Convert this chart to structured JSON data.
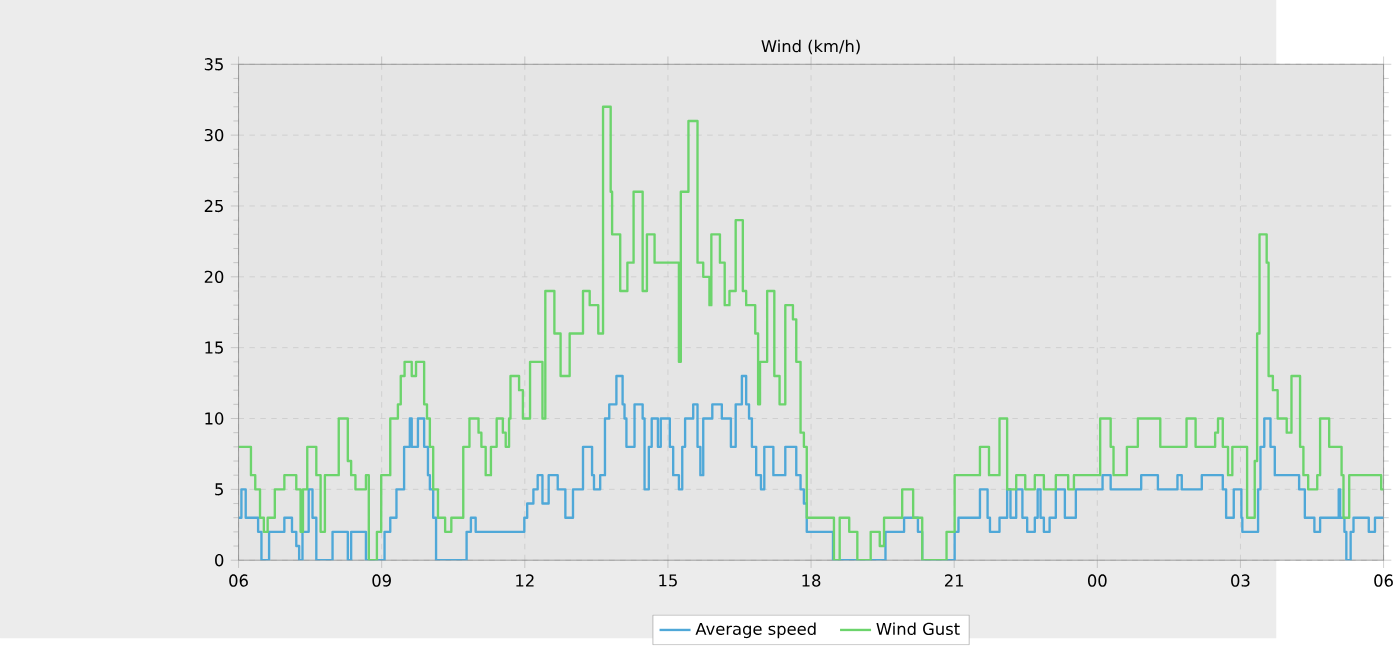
{
  "chart_data": {
    "type": "step",
    "title": "Wind (km/h)",
    "xlim": [
      6,
      30
    ],
    "xticks": [
      {
        "value": 6,
        "label": "06"
      },
      {
        "value": 9,
        "label": "09"
      },
      {
        "value": 12,
        "label": "12"
      },
      {
        "value": 15,
        "label": "15"
      },
      {
        "value": 18,
        "label": "18"
      },
      {
        "value": 21,
        "label": "21"
      },
      {
        "value": 24,
        "label": "00"
      },
      {
        "value": 27,
        "label": "03"
      },
      {
        "value": 30,
        "label": "06"
      }
    ],
    "ylim": [
      0,
      35
    ],
    "yticks": [
      0,
      5,
      10,
      15,
      20,
      25,
      30,
      35
    ],
    "grid": true,
    "legend": "bottom",
    "line_style": "solid",
    "series": [
      {
        "name": "Average speed",
        "color": "#4fa8d8",
        "x": [
          6.0,
          6.06,
          6.15,
          6.41,
          6.48,
          6.64,
          6.96,
          7.12,
          7.21,
          7.27,
          7.34,
          7.47,
          7.55,
          7.63,
          7.97,
          8.29,
          8.36,
          8.67,
          9.06,
          9.18,
          9.31,
          9.47,
          9.59,
          9.63,
          9.76,
          9.89,
          9.97,
          10.01,
          10.08,
          10.14,
          10.78,
          10.87,
          10.97,
          11.99,
          12.05,
          12.18,
          12.27,
          12.37,
          12.5,
          12.69,
          12.85,
          13.01,
          13.22,
          13.41,
          13.45,
          13.58,
          13.68,
          13.77,
          13.92,
          14.05,
          14.09,
          14.13,
          14.3,
          14.47,
          14.51,
          14.6,
          14.66,
          14.79,
          14.85,
          15.04,
          15.11,
          15.23,
          15.3,
          15.36,
          15.53,
          15.62,
          15.68,
          15.74,
          15.93,
          16.13,
          16.32,
          16.42,
          16.55,
          16.64,
          16.7,
          16.76,
          16.85,
          16.95,
          17.02,
          17.21,
          17.46,
          17.69,
          17.78,
          17.85,
          17.91,
          18.46,
          19.56,
          19.95,
          20.24,
          20.33,
          21.01,
          21.09,
          21.54,
          21.7,
          21.75,
          21.95,
          22.11,
          22.18,
          22.3,
          22.43,
          22.53,
          22.69,
          22.75,
          22.81,
          22.88,
          23.0,
          23.13,
          23.32,
          23.55,
          24.11,
          24.28,
          24.92,
          25.27,
          25.68,
          25.77,
          26.19,
          26.63,
          26.7,
          26.86,
          27.02,
          27.04,
          27.37,
          27.42,
          27.5,
          27.63,
          27.72,
          28.23,
          28.35,
          28.55,
          28.67,
          29.06,
          29.09,
          29.18,
          29.22,
          29.31,
          29.37,
          29.69,
          29.82,
          30
        ],
        "values": [
          3,
          5,
          3,
          2,
          0,
          2,
          3,
          2,
          1,
          0,
          2,
          5,
          3,
          0,
          2,
          0,
          2,
          0,
          2,
          3,
          5,
          8,
          10,
          8,
          10,
          8,
          6,
          5,
          3,
          0,
          2,
          3,
          2,
          3,
          4,
          5,
          6,
          4,
          6,
          5,
          3,
          5,
          8,
          6,
          5,
          6,
          10,
          11,
          13,
          11,
          10,
          8,
          11,
          10,
          5,
          8,
          10,
          8,
          10,
          8,
          6,
          5,
          8,
          10,
          11,
          8,
          6,
          10,
          11,
          10,
          8,
          11,
          13,
          11,
          10,
          8,
          6,
          5,
          8,
          6,
          8,
          6,
          5,
          4,
          2,
          0,
          2,
          3,
          2,
          0,
          2,
          3,
          5,
          3,
          2,
          3,
          5,
          3,
          5,
          3,
          2,
          3,
          5,
          3,
          2,
          3,
          5,
          3,
          5,
          6,
          5,
          6,
          5,
          6,
          5,
          6,
          5,
          3,
          5,
          3,
          2,
          5,
          8,
          10,
          8,
          6,
          5,
          3,
          2,
          3,
          5,
          3,
          2,
          0,
          2,
          3,
          2,
          3,
          3
        ]
      },
      {
        "name": "Wind Gust",
        "color": "#6cd46c",
        "x": [
          6.0,
          6.26,
          6.35,
          6.45,
          6.53,
          6.61,
          6.76,
          6.96,
          7.21,
          7.3,
          7.35,
          7.44,
          7.63,
          7.72,
          7.81,
          8.1,
          8.29,
          8.36,
          8.45,
          8.67,
          8.73,
          8.9,
          8.99,
          9.18,
          9.34,
          9.4,
          9.48,
          9.63,
          9.72,
          9.89,
          9.95,
          10.01,
          10.08,
          10.18,
          10.33,
          10.46,
          10.71,
          10.84,
          11.03,
          11.09,
          11.18,
          11.29,
          11.41,
          11.54,
          11.6,
          11.67,
          11.7,
          11.88,
          11.96,
          12.11,
          12.37,
          12.43,
          12.62,
          12.75,
          12.94,
          13.22,
          13.36,
          13.54,
          13.64,
          13.8,
          13.83,
          14.0,
          14.15,
          14.28,
          14.47,
          14.56,
          14.72,
          15.23,
          15.27,
          15.43,
          15.62,
          15.74,
          15.87,
          15.91,
          16.09,
          16.19,
          16.29,
          16.42,
          16.57,
          16.64,
          16.83,
          16.89,
          16.93,
          17.08,
          17.23,
          17.34,
          17.46,
          17.62,
          17.69,
          17.78,
          17.85,
          17.91,
          18.48,
          18.6,
          18.8,
          18.97,
          19.25,
          19.44,
          19.53,
          19.91,
          20.14,
          20.33,
          20.84,
          21.01,
          21.54,
          21.73,
          21.95,
          22.11,
          22.3,
          22.49,
          22.69,
          22.88,
          23.13,
          23.39,
          23.51,
          24.06,
          24.28,
          24.34,
          24.62,
          24.85,
          25.32,
          25.87,
          26.06,
          26.47,
          26.53,
          26.63,
          26.74,
          26.83,
          27.14,
          27.3,
          27.35,
          27.4,
          27.55,
          27.59,
          27.68,
          27.78,
          27.97,
          28.07,
          28.25,
          28.32,
          28.42,
          28.61,
          28.67,
          28.86,
          29.12,
          29.16,
          29.28,
          29.95,
          30
        ],
        "values": [
          8,
          6,
          5,
          3,
          2,
          3,
          5,
          6,
          5,
          2,
          5,
          8,
          6,
          2,
          6,
          10,
          7,
          6,
          5,
          6,
          0,
          2,
          6,
          10,
          11,
          13,
          14,
          13,
          14,
          11,
          10,
          8,
          5,
          3,
          2,
          3,
          8,
          10,
          9,
          8,
          6,
          8,
          10,
          9,
          8,
          10,
          13,
          12,
          10,
          14,
          10,
          19,
          16,
          13,
          16,
          19,
          18,
          16,
          32,
          26,
          23,
          19,
          21,
          26,
          19,
          23,
          21,
          14,
          26,
          31,
          21,
          20,
          18,
          23,
          21,
          18,
          19,
          24,
          19,
          18,
          16,
          11,
          14,
          19,
          13,
          11,
          18,
          17,
          14,
          9,
          8,
          3,
          0,
          3,
          2,
          0,
          2,
          1,
          3,
          5,
          3,
          0,
          2,
          6,
          8,
          6,
          10,
          5,
          6,
          5,
          6,
          5,
          6,
          5,
          6,
          10,
          8,
          6,
          8,
          10,
          8,
          10,
          8,
          9,
          10,
          8,
          6,
          8,
          3,
          7,
          16,
          23,
          21,
          13,
          12,
          10,
          9,
          13,
          8,
          6,
          5,
          6,
          10,
          8,
          6,
          3,
          6,
          5,
          5
        ]
      }
    ]
  }
}
